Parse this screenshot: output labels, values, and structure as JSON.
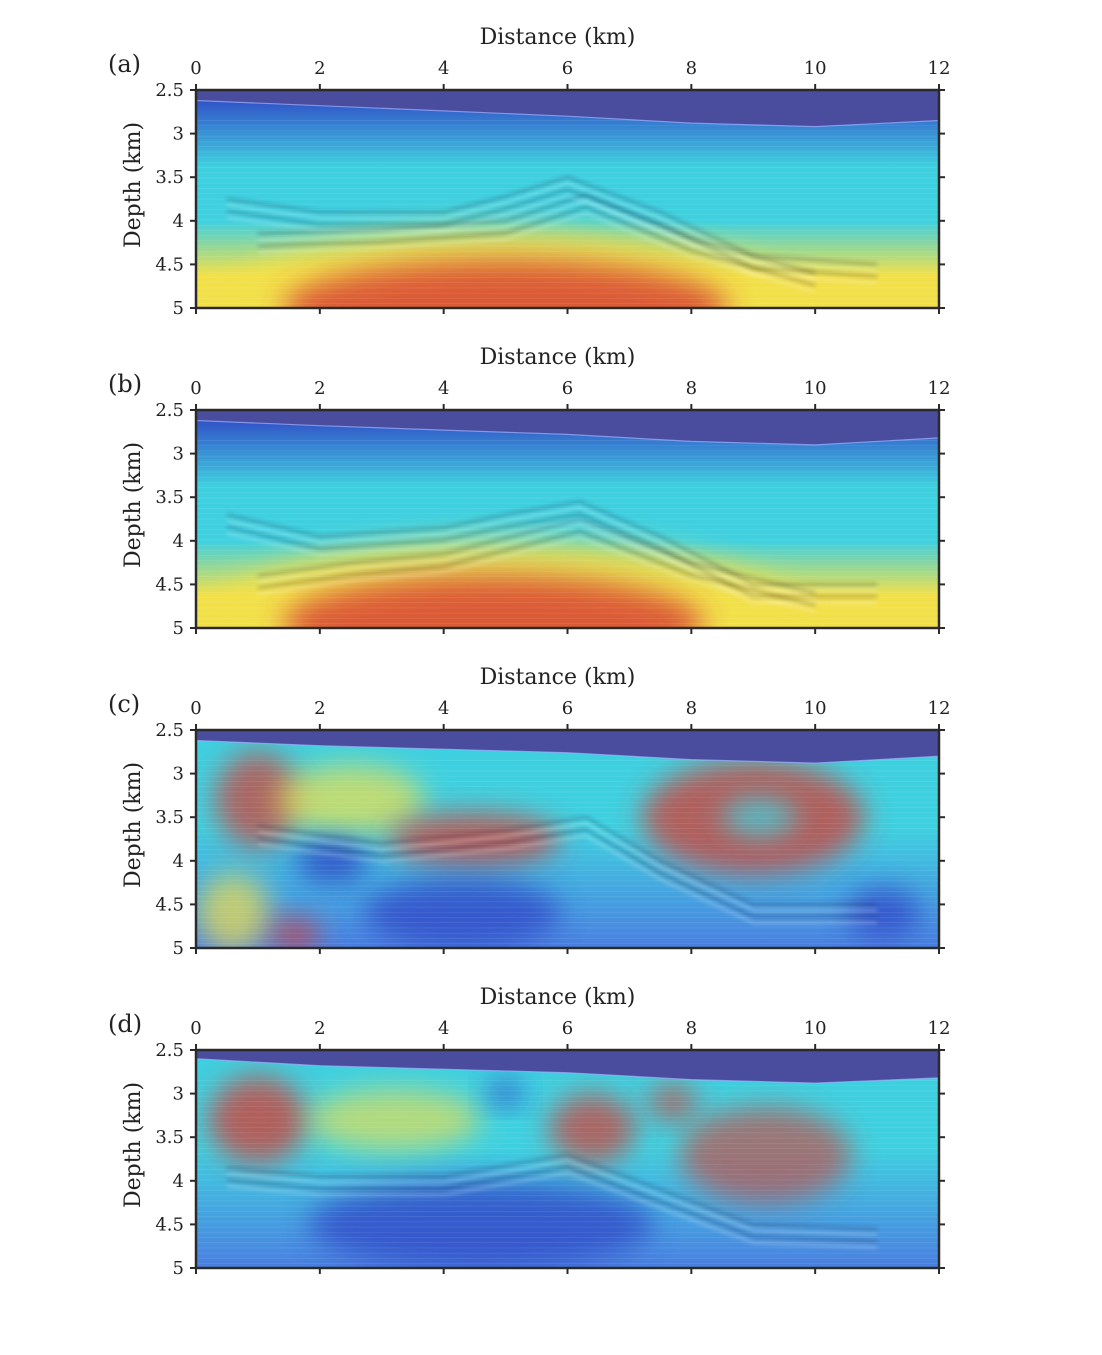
{
  "colors": {
    "water": "#4a4d9e",
    "deep_blue": "#2f3fc4",
    "cyan": "#3fd0e0",
    "yellow": "#f2e04a",
    "red": "#d63a33",
    "axis": "#2a2a2a"
  },
  "chart_data": [
    {
      "type": "heatmap",
      "panel_label": "(a)",
      "xlabel": "Distance (km)",
      "ylabel": "Depth (km)",
      "xlim": [
        0,
        12
      ],
      "ylim": [
        2.5,
        5
      ],
      "x_ticks": [
        "0",
        "2",
        "4",
        "6",
        "8",
        "10",
        "12"
      ],
      "y_ticks": [
        "2.5",
        "3",
        "3.5",
        "4",
        "4.5",
        "5"
      ],
      "pattern": "gradient",
      "seabed": [
        [
          0,
          2.62
        ],
        [
          2,
          2.68
        ],
        [
          4,
          2.74
        ],
        [
          6,
          2.8
        ],
        [
          8,
          2.88
        ],
        [
          10,
          2.92
        ],
        [
          12,
          2.85
        ]
      ],
      "blobs": [
        {
          "x": 5.0,
          "y": 4.95,
          "rx": 4.6,
          "ry": 0.85,
          "color": "yellow",
          "opacity": 0.85
        },
        {
          "x": 5.0,
          "y": 5.0,
          "rx": 3.6,
          "ry": 0.55,
          "color": "red",
          "opacity": 0.8
        }
      ],
      "reflectors": [
        [
          [
            0.5,
            3.75
          ],
          [
            2,
            3.9
          ],
          [
            4,
            3.9
          ],
          [
            5,
            3.72
          ],
          [
            6,
            3.5
          ],
          [
            7.5,
            3.9
          ],
          [
            9,
            4.4
          ],
          [
            11,
            4.5
          ]
        ],
        [
          [
            1,
            4.15
          ],
          [
            3,
            4.1
          ],
          [
            5,
            4.0
          ],
          [
            6.3,
            3.7
          ],
          [
            8,
            4.2
          ],
          [
            10,
            4.6
          ]
        ]
      ]
    },
    {
      "type": "heatmap",
      "panel_label": "(b)",
      "xlabel": "Distance (km)",
      "ylabel": "Depth (km)",
      "xlim": [
        0,
        12
      ],
      "ylim": [
        2.5,
        5
      ],
      "x_ticks": [
        "0",
        "2",
        "4",
        "6",
        "8",
        "10",
        "12"
      ],
      "y_ticks": [
        "2.5",
        "3",
        "3.5",
        "4",
        "4.5",
        "5"
      ],
      "pattern": "gradient",
      "seabed": [
        [
          0,
          2.62
        ],
        [
          2,
          2.68
        ],
        [
          4,
          2.73
        ],
        [
          6,
          2.78
        ],
        [
          8,
          2.86
        ],
        [
          10,
          2.9
        ],
        [
          12,
          2.82
        ]
      ],
      "blobs": [
        {
          "x": 5.0,
          "y": 4.9,
          "rx": 4.8,
          "ry": 0.9,
          "color": "yellow",
          "opacity": 0.85
        },
        {
          "x": 4.8,
          "y": 4.95,
          "rx": 3.4,
          "ry": 0.55,
          "color": "red",
          "opacity": 0.8
        }
      ],
      "reflectors": [
        [
          [
            0.5,
            3.7
          ],
          [
            2,
            3.95
          ],
          [
            4,
            3.85
          ],
          [
            5,
            3.7
          ],
          [
            6.2,
            3.55
          ],
          [
            7.5,
            3.95
          ],
          [
            9,
            4.5
          ],
          [
            11,
            4.5
          ]
        ],
        [
          [
            1,
            4.4
          ],
          [
            2.5,
            4.25
          ],
          [
            4,
            4.15
          ],
          [
            6.2,
            3.75
          ],
          [
            8,
            4.25
          ],
          [
            10,
            4.6
          ]
        ]
      ]
    },
    {
      "type": "heatmap",
      "panel_label": "(c)",
      "xlabel": "Distance (km)",
      "ylabel": "Depth (km)",
      "xlim": [
        0,
        12
      ],
      "ylim": [
        2.5,
        5
      ],
      "x_ticks": [
        "0",
        "2",
        "4",
        "6",
        "8",
        "10",
        "12"
      ],
      "y_ticks": [
        "2.5",
        "3",
        "3.5",
        "4",
        "4.5",
        "5"
      ],
      "pattern": "anomaly",
      "seabed": [
        [
          0,
          2.62
        ],
        [
          2,
          2.68
        ],
        [
          4,
          2.72
        ],
        [
          6,
          2.76
        ],
        [
          8,
          2.84
        ],
        [
          10,
          2.88
        ],
        [
          12,
          2.8
        ]
      ],
      "blobs": [
        {
          "x": 1.0,
          "y": 3.3,
          "rx": 0.7,
          "ry": 0.55,
          "color": "red",
          "opacity": 0.7
        },
        {
          "x": 2.5,
          "y": 3.3,
          "rx": 1.2,
          "ry": 0.4,
          "color": "yellow",
          "opacity": 0.7
        },
        {
          "x": 4.5,
          "y": 3.75,
          "rx": 1.4,
          "ry": 0.3,
          "color": "red",
          "opacity": 0.75
        },
        {
          "x": 9.0,
          "y": 3.5,
          "rx": 1.8,
          "ry": 0.65,
          "color": "red",
          "opacity": 0.75
        },
        {
          "x": 9.1,
          "y": 3.5,
          "rx": 0.6,
          "ry": 0.22,
          "color": "cyan",
          "opacity": 0.8
        },
        {
          "x": 2.2,
          "y": 4.0,
          "rx": 0.6,
          "ry": 0.25,
          "color": "deep_blue",
          "opacity": 0.8
        },
        {
          "x": 4.3,
          "y": 4.6,
          "rx": 1.6,
          "ry": 0.4,
          "color": "deep_blue",
          "opacity": 0.7
        },
        {
          "x": 11.1,
          "y": 4.6,
          "rx": 0.6,
          "ry": 0.3,
          "color": "deep_blue",
          "opacity": 0.7
        },
        {
          "x": 0.6,
          "y": 4.6,
          "rx": 0.6,
          "ry": 0.45,
          "color": "yellow",
          "opacity": 0.7
        },
        {
          "x": 1.6,
          "y": 4.85,
          "rx": 0.4,
          "ry": 0.2,
          "color": "red",
          "opacity": 0.7
        }
      ],
      "reflectors": [
        [
          [
            1,
            3.6
          ],
          [
            3,
            3.8
          ],
          [
            5,
            3.65
          ],
          [
            6.3,
            3.5
          ],
          [
            7.5,
            4.0
          ],
          [
            9,
            4.5
          ],
          [
            11,
            4.5
          ]
        ]
      ]
    },
    {
      "type": "heatmap",
      "panel_label": "(d)",
      "xlabel": "Distance (km)",
      "ylabel": "Depth (km)",
      "xlim": [
        0,
        12
      ],
      "ylim": [
        2.5,
        5
      ],
      "x_ticks": [
        "0",
        "2",
        "4",
        "6",
        "8",
        "10",
        "12"
      ],
      "y_ticks": [
        "2.5",
        "3",
        "3.5",
        "4",
        "4.5",
        "5"
      ],
      "pattern": "anomaly",
      "seabed": [
        [
          0,
          2.6
        ],
        [
          0.5,
          2.62
        ],
        [
          2,
          2.68
        ],
        [
          4,
          2.72
        ],
        [
          6,
          2.76
        ],
        [
          8,
          2.84
        ],
        [
          10,
          2.88
        ],
        [
          12,
          2.82
        ]
      ],
      "blobs": [
        {
          "x": 1.0,
          "y": 3.3,
          "rx": 0.8,
          "ry": 0.5,
          "color": "red",
          "opacity": 0.75
        },
        {
          "x": 3.2,
          "y": 3.3,
          "rx": 1.4,
          "ry": 0.35,
          "color": "yellow",
          "opacity": 0.65
        },
        {
          "x": 6.4,
          "y": 3.4,
          "rx": 0.7,
          "ry": 0.4,
          "color": "red",
          "opacity": 0.7
        },
        {
          "x": 7.7,
          "y": 3.1,
          "rx": 0.4,
          "ry": 0.2,
          "color": "red",
          "opacity": 0.7
        },
        {
          "x": 9.2,
          "y": 3.7,
          "rx": 1.4,
          "ry": 0.55,
          "color": "red",
          "opacity": 0.6
        },
        {
          "x": 4.6,
          "y": 4.5,
          "rx": 2.8,
          "ry": 0.5,
          "color": "deep_blue",
          "opacity": 0.7
        },
        {
          "x": 5.0,
          "y": 3.0,
          "rx": 0.3,
          "ry": 0.15,
          "color": "deep_blue",
          "opacity": 0.75
        }
      ],
      "reflectors": [
        [
          [
            0.5,
            3.85
          ],
          [
            2,
            3.95
          ],
          [
            4,
            3.95
          ],
          [
            6,
            3.7
          ],
          [
            7.5,
            4.1
          ],
          [
            9,
            4.5
          ],
          [
            11,
            4.55
          ]
        ]
      ]
    }
  ]
}
